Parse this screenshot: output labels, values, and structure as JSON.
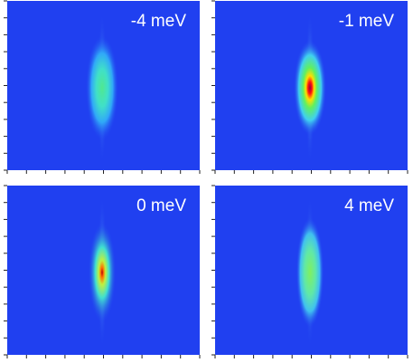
{
  "panels": [
    {
      "label": "-4 meV"
    },
    {
      "label": "-1 meV"
    },
    {
      "label": "0 meV"
    },
    {
      "label": "4 meV"
    }
  ]
}
